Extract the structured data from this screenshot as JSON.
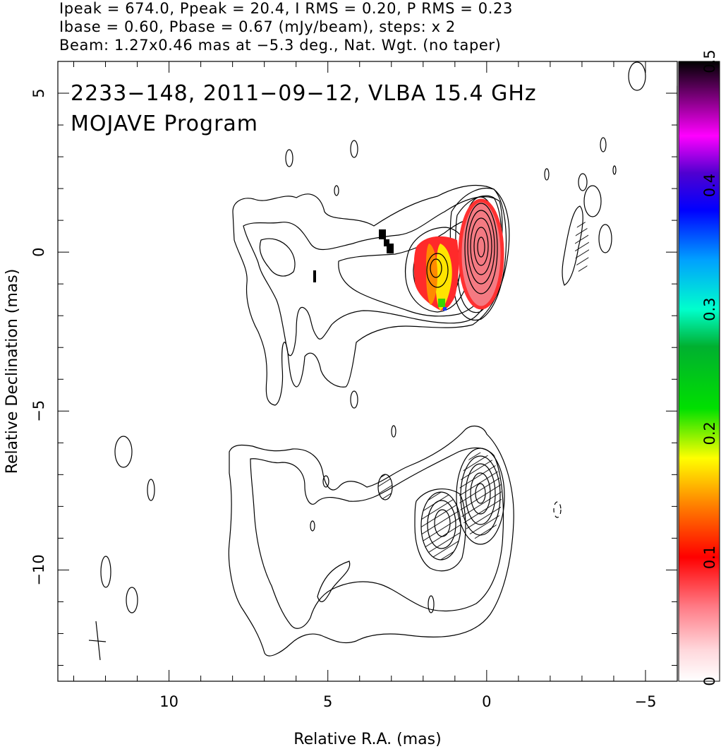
{
  "header": {
    "line1": "Ipeak = 674.0, Ppeak = 20.4, I RMS = 0.20, P RMS = 0.23",
    "line2": "Ibase = 0.60, Pbase = 0.67 (mJy/beam), steps: x 2",
    "line3": "Beam: 1.27x0.46 mas at −5.3 deg., Nat. Wgt. (no taper)"
  },
  "chart_data": {
    "type": "contour",
    "title_overlay_1": "2233−148, 2011−09−12, VLBA 15.4 GHz",
    "title_overlay_2": "MOJAVE Program",
    "xlabel": "Relative R.A. (mas)",
    "ylabel": "Relative Declination (mas)",
    "xlim": [
      13.5,
      -6
    ],
    "ylim": [
      -13.5,
      6
    ],
    "x_direction": "reversed",
    "x_ticks": [
      {
        "v": 10,
        "label": "10"
      },
      {
        "v": 5,
        "label": "5"
      },
      {
        "v": 0,
        "label": "0"
      },
      {
        "v": -5,
        "label": "−5"
      }
    ],
    "y_ticks": [
      {
        "v": 5,
        "label": "5"
      },
      {
        "v": 0,
        "label": "0"
      },
      {
        "v": -5,
        "label": "−5"
      },
      {
        "v": -10,
        "label": "−10"
      }
    ],
    "intensity_contours": {
      "peak_mJy_per_beam": 674.0,
      "base_mJy_per_beam": 0.6,
      "step_factor": 2,
      "core_position": [
        0,
        0.1
      ],
      "knot_position": [
        1.5,
        -0.6
      ]
    },
    "polarization_contours": {
      "peak_mJy_per_beam": 20.4,
      "base_mJy_per_beam": 0.67,
      "core_position": [
        0,
        -7.9
      ],
      "knot_position": [
        1.3,
        -8.7
      ]
    },
    "fractional_polarization": {
      "colorbar_min": 0,
      "colorbar_max": 0.5,
      "colorbar_ticks": [
        {
          "v": 0,
          "label": "0"
        },
        {
          "v": 0.1,
          "label": "0.1"
        },
        {
          "v": 0.2,
          "label": "0.2"
        },
        {
          "v": 0.3,
          "label": "0.3"
        },
        {
          "v": 0.4,
          "label": "0.4"
        },
        {
          "v": 0.5,
          "label": "0.5"
        }
      ],
      "typical_core_value": 0.1,
      "typical_knot_value": 0.12
    },
    "beam": {
      "major_mas": 1.27,
      "minor_mas": 0.46,
      "pa_deg": -5.3,
      "center": [
        12.2,
        -12.4
      ]
    }
  }
}
